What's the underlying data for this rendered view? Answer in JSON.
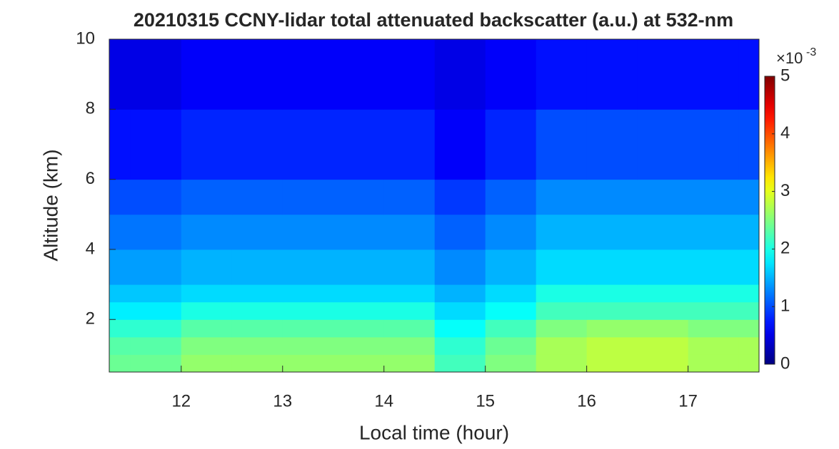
{
  "chart_data": {
    "type": "heatmap",
    "title": "20210315 CCNY-lidar total attenuated backscatter (a.u.) at 532-nm",
    "xlabel": "Local time (hour)",
    "ylabel": "Altitude (km)",
    "x_edges": [
      11.29,
      11.5,
      12,
      12.5,
      13,
      13.5,
      14,
      14.5,
      15,
      15.5,
      16,
      16.5,
      17,
      17.5,
      17.7
    ],
    "y_edges": [
      0.5,
      1,
      1.5,
      2,
      2.5,
      3,
      4,
      5,
      6,
      8,
      10
    ],
    "values": [
      [
        2.4,
        2.4,
        2.6,
        2.6,
        2.6,
        2.6,
        2.6,
        2.2,
        2.5,
        2.7,
        2.8,
        2.8,
        2.7,
        2.7
      ],
      [
        2.3,
        2.3,
        2.5,
        2.5,
        2.5,
        2.5,
        2.5,
        2.1,
        2.4,
        2.7,
        2.8,
        2.8,
        2.7,
        2.7
      ],
      [
        2.1,
        2.1,
        2.3,
        2.3,
        2.3,
        2.3,
        2.3,
        1.9,
        2.2,
        2.5,
        2.6,
        2.6,
        2.5,
        2.5
      ],
      [
        1.8,
        1.8,
        2.0,
        2.0,
        2.0,
        2.0,
        2.0,
        1.7,
        1.9,
        2.2,
        2.2,
        2.2,
        2.2,
        2.2
      ],
      [
        1.6,
        1.6,
        1.7,
        1.7,
        1.7,
        1.7,
        1.7,
        1.5,
        1.7,
        2.0,
        2.0,
        2.0,
        2.0,
        2.0
      ],
      [
        1.4,
        1.4,
        1.5,
        1.5,
        1.5,
        1.5,
        1.5,
        1.3,
        1.5,
        1.7,
        1.7,
        1.7,
        1.7,
        1.7
      ],
      [
        1.2,
        1.2,
        1.3,
        1.3,
        1.3,
        1.3,
        1.3,
        1.1,
        1.3,
        1.5,
        1.5,
        1.5,
        1.5,
        1.5
      ],
      [
        1.0,
        1.0,
        1.1,
        1.1,
        1.1,
        1.1,
        1.1,
        0.9,
        1.1,
        1.3,
        1.3,
        1.3,
        1.3,
        1.3
      ],
      [
        0.7,
        0.7,
        0.8,
        0.8,
        0.8,
        0.8,
        0.8,
        0.6,
        0.8,
        1.0,
        1.0,
        1.0,
        1.0,
        1.0
      ],
      [
        0.5,
        0.5,
        0.6,
        0.6,
        0.6,
        0.6,
        0.6,
        0.5,
        0.6,
        0.7,
        0.7,
        0.7,
        0.7,
        0.7
      ]
    ],
    "xlim": [
      11.29,
      17.7
    ],
    "ylim": [
      0.5,
      10
    ],
    "xticks": [
      12,
      13,
      14,
      15,
      16,
      17
    ],
    "yticks": [
      2,
      4,
      6,
      8,
      10
    ],
    "colormap": "jet",
    "clim": [
      0,
      5
    ],
    "cticks": [
      0,
      1,
      2,
      3,
      4,
      5
    ],
    "colorbar_multiplier": "×10",
    "colorbar_exponent": "-3"
  }
}
